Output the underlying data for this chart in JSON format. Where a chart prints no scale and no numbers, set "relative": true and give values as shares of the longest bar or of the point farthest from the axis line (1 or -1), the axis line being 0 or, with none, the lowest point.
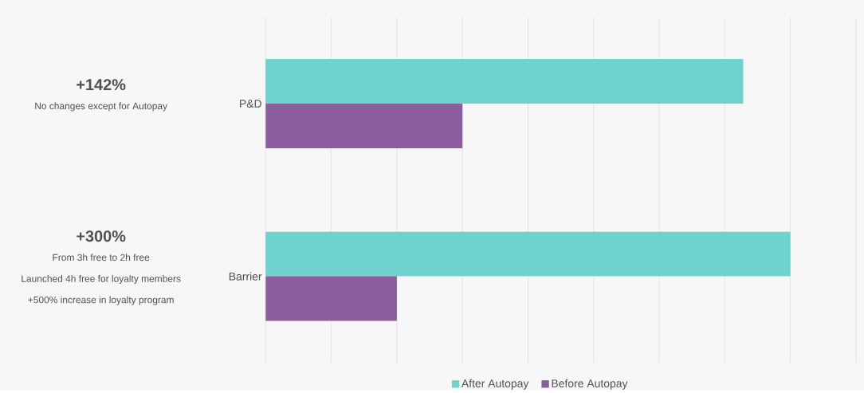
{
  "chart_data": {
    "type": "bar",
    "orientation": "horizontal",
    "relative": true,
    "grid": "x",
    "legend": "bottom",
    "categories": [
      "P&D",
      "Barrier"
    ],
    "series": [
      {
        "name": "After Autopay",
        "color": "#70d2cf",
        "values": [
          0.91,
          1
        ]
      },
      {
        "name": "Before Autopay",
        "color": "#8b5c9e",
        "values": [
          0.375,
          0.25
        ]
      }
    ],
    "annotations": [
      "+142%",
      "No changes except for Autopay",
      "+300%",
      "From 3h free to 2h free",
      "Launched 4h free for loyalty members",
      "+500% increase in loyalty program"
    ]
  }
}
